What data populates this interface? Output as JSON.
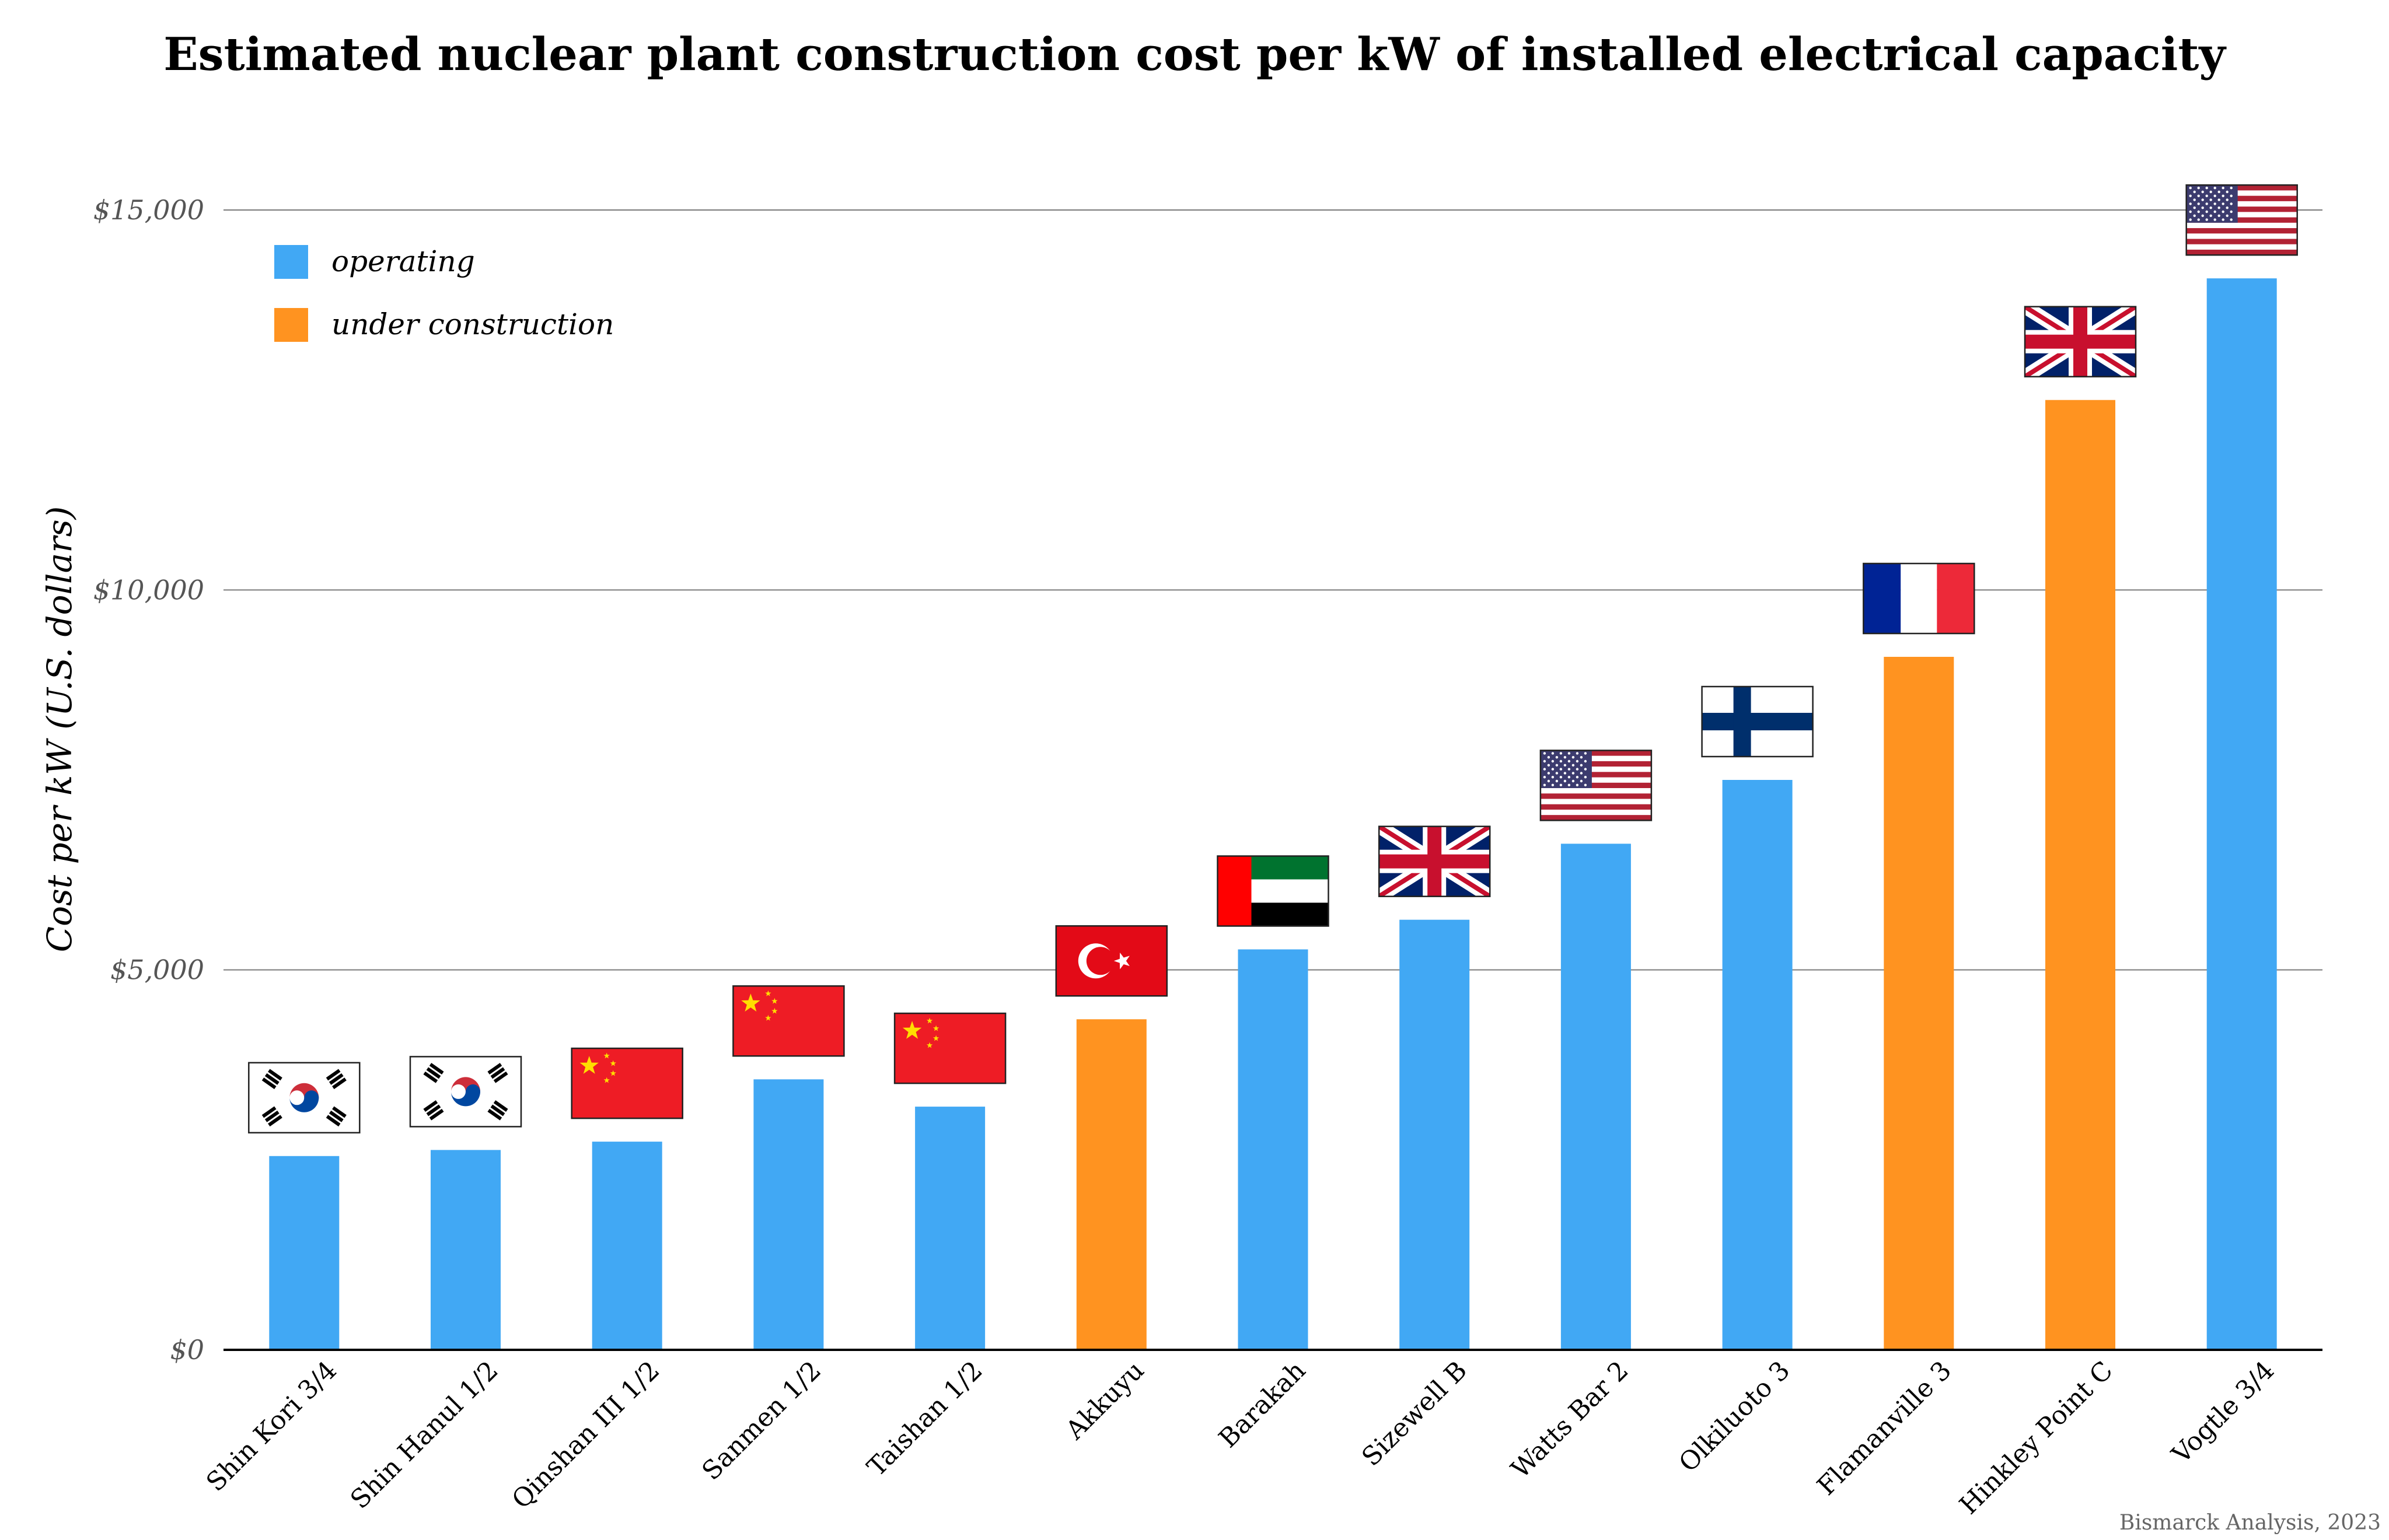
{
  "chart_data": {
    "type": "bar",
    "title": "Estimated nuclear plant construction cost per kW of installed electrical capacity",
    "ylabel": "Cost per kW (U.S. dollars)",
    "xlabel": "",
    "ylim": [
      0,
      15000
    ],
    "yticks": [
      0,
      5000,
      10000,
      15000
    ],
    "ytick_labels": [
      "$0",
      "$5,000",
      "$10,000",
      "$15,000"
    ],
    "grid": true,
    "legend_position": "top-left",
    "credit": "Bismarck Analysis, 2023",
    "legend": [
      {
        "key": "operating",
        "label": "operating",
        "color": "#41a8f4"
      },
      {
        "key": "under_construction",
        "label": "under construction",
        "color": "#ff9320"
      }
    ],
    "categories": [
      "Shin Kori 3/4",
      "Shin Hanul 1/2",
      "Qinshan III 1/2",
      "Sanmen 1/2",
      "Taishan 1/2",
      "Akkuyu",
      "Barakah",
      "Sizewell B",
      "Watts Bar 2",
      "Olkiluoto 3",
      "Flamanville 3",
      "Hinkley Point C",
      "Vogtle 3/4"
    ],
    "values": [
      2550,
      2630,
      2740,
      3560,
      3200,
      4350,
      5270,
      5660,
      6660,
      7500,
      9120,
      12500,
      14100
    ],
    "status": [
      "operating",
      "operating",
      "operating",
      "operating",
      "operating",
      "under_construction",
      "operating",
      "operating",
      "operating",
      "operating",
      "under_construction",
      "under_construction",
      "operating"
    ],
    "flags": [
      "south-korea-flag-icon",
      "south-korea-flag-icon",
      "china-flag-icon",
      "china-flag-icon",
      "china-flag-icon",
      "turkey-flag-icon",
      "uae-flag-icon",
      "uk-flag-icon",
      "usa-flag-icon",
      "finland-flag-icon",
      "france-flag-icon",
      "uk-flag-icon",
      "usa-flag-icon"
    ]
  }
}
